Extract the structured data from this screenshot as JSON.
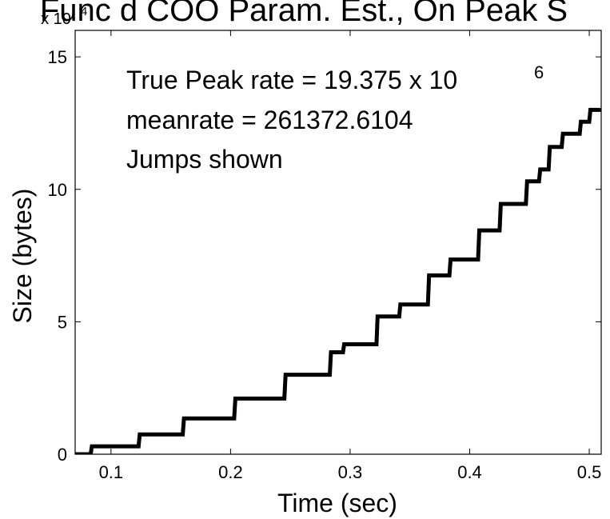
{
  "chart_data": {
    "type": "line",
    "title": "Func d COO Param. Est., On Peak S",
    "xlabel": "Time (sec)",
    "ylabel": "Size (bytes)",
    "y_exponent_label": "x 10",
    "y_exponent_power": "4",
    "xlim": [
      0.07,
      0.51
    ],
    "ylim": [
      0,
      16
    ],
    "xticks": [
      0.1,
      0.2,
      0.3,
      0.4,
      0.5
    ],
    "xtick_labels": [
      "0.1",
      "0.2",
      "0.3",
      "0.4",
      "0.5"
    ],
    "yticks": [
      0,
      5,
      10,
      15
    ],
    "ytick_labels": [
      "0",
      "5",
      "10",
      "15"
    ],
    "grid": false,
    "annotations": [
      "True Peak rate = 19.375 x 10",
      "meanrate = 261372.6104",
      "Jumps shown"
    ],
    "annotation_superscript": "6",
    "series": [
      {
        "color": "#000000",
        "x": [
          0.07,
          0.083,
          0.084,
          0.123,
          0.124,
          0.16,
          0.161,
          0.203,
          0.204,
          0.245,
          0.246,
          0.283,
          0.284,
          0.294,
          0.295,
          0.322,
          0.323,
          0.341,
          0.342,
          0.365,
          0.366,
          0.383,
          0.384,
          0.407,
          0.408,
          0.425,
          0.426,
          0.447,
          0.448,
          0.458,
          0.459,
          0.466,
          0.467,
          0.477,
          0.478,
          0.492,
          0.493,
          0.5,
          0.501,
          0.51
        ],
        "y": [
          0,
          0,
          0.3,
          0.3,
          0.75,
          0.75,
          1.35,
          1.35,
          2.1,
          2.1,
          3.0,
          3.0,
          3.85,
          3.85,
          4.15,
          4.15,
          5.2,
          5.2,
          5.65,
          5.65,
          6.75,
          6.75,
          7.35,
          7.35,
          8.45,
          8.45,
          9.45,
          9.45,
          10.3,
          10.3,
          10.75,
          10.75,
          11.6,
          11.6,
          12.1,
          12.1,
          12.55,
          12.55,
          13.0,
          13.0
        ]
      }
    ]
  }
}
